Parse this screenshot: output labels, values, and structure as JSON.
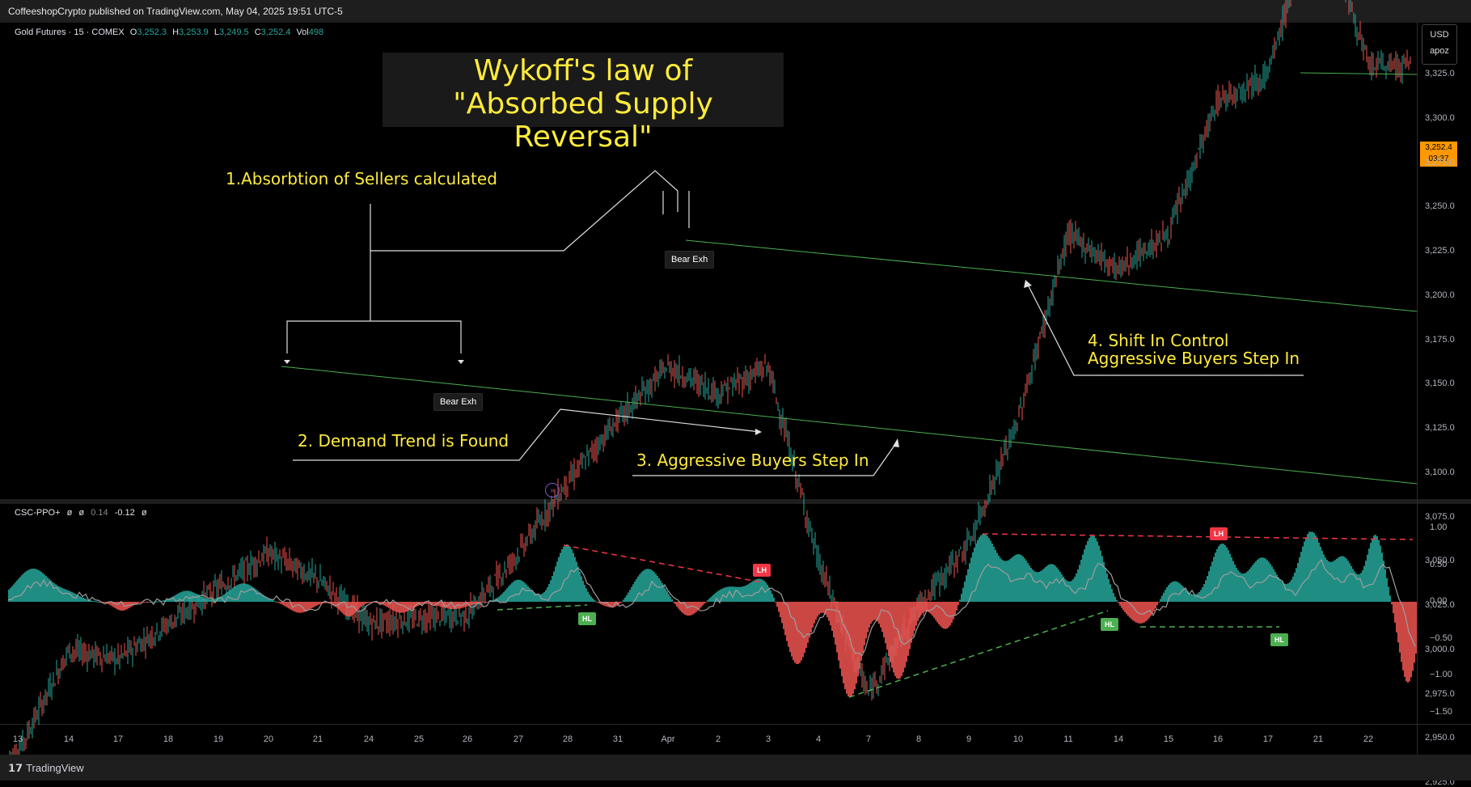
{
  "header": {
    "published_line": "CoffeeshopCrypto published on TradingView.com, May 04, 2025 19:51 UTC-5"
  },
  "legend": {
    "symbol": "Gold Futures · 15 · COMEX",
    "o_label": "O",
    "o": "3,252.3",
    "h_label": "H",
    "h": "3,253.9",
    "l_label": "L",
    "l": "3,249.5",
    "c_label": "C",
    "c": "3,252.4",
    "vol_label": "Vol",
    "vol": "498"
  },
  "indicator_legend": {
    "name": "CSC-PPO+",
    "v1": "ø",
    "v2": "ø",
    "v3": "0.14",
    "v4": "-0.12",
    "v5": "ø"
  },
  "annotations": {
    "title_line1": "Wykoff's law of",
    "title_line2": "\"Absorbed Supply Reversal\"",
    "note1": "1.Absorbtion of Sellers calculated",
    "note2": "2. Demand Trend is Found",
    "note3": "3. Aggressive Buyers Step In",
    "note4_line1": "4. Shift In Control",
    "note4_line2": "Aggressive Buyers Step In",
    "bear_exh_1": "Bear Exh",
    "bear_exh_2": "Bear Exh"
  },
  "markers": {
    "lh": "LH",
    "hl": "HL"
  },
  "price_scale": {
    "currency": "USD",
    "mode": "apoz",
    "last_price": "3,252.4",
    "countdown": "03:37",
    "ticks": [
      "3,325.0",
      "3,300.0",
      "3,275.0",
      "3,250.0",
      "3,225.0",
      "3,200.0",
      "3,175.0",
      "3,150.0",
      "3,125.0",
      "3,100.0",
      "3,075.0",
      "3,050.0",
      "3,025.0",
      "3,000.0",
      "2,975.0",
      "2,950.0",
      "2,925.0"
    ]
  },
  "osc_scale": {
    "ticks": [
      "1.00",
      "0.50",
      "0.00",
      "−0.50",
      "−1.00",
      "−1.50"
    ]
  },
  "x_axis": {
    "labels": [
      "13",
      "14",
      "17",
      "18",
      "19",
      "20",
      "21",
      "24",
      "25",
      "26",
      "27",
      "28",
      "31",
      "Apr",
      "2",
      "3",
      "4",
      "7",
      "8",
      "9",
      "10",
      "11",
      "14",
      "15",
      "16",
      "17",
      "21",
      "22"
    ]
  },
  "footer": {
    "brand": "TradingView"
  },
  "colors": {
    "up": "#26a69a",
    "down": "#ef5350",
    "annotation": "#ffeb3b",
    "trendline": "#4caf50",
    "osc_pos": "#26a69a",
    "osc_neg": "#ef5350"
  },
  "chart_data": {
    "type": "candlestick",
    "symbol": "Gold Futures 15m COMEX",
    "price_path": [
      {
        "x": "13",
        "y": 2942
      },
      {
        "x": "14",
        "y": 3000
      },
      {
        "x": "17",
        "y": 2995
      },
      {
        "x": "18",
        "y": 3015
      },
      {
        "x": "19",
        "y": 3035
      },
      {
        "x": "20",
        "y": 3055
      },
      {
        "x": "21",
        "y": 3040
      },
      {
        "x": "24",
        "y": 3015
      },
      {
        "x": "25",
        "y": 3018
      },
      {
        "x": "26",
        "y": 3020
      },
      {
        "x": "27",
        "y": 3055
      },
      {
        "x": "28",
        "y": 3095
      },
      {
        "x": "31",
        "y": 3130
      },
      {
        "x": "Apr",
        "y": 3160
      },
      {
        "x": "2",
        "y": 3145
      },
      {
        "x": "3",
        "y": 3160
      },
      {
        "x": "4",
        "y": 3050
      },
      {
        "x": "7",
        "y": 2975
      },
      {
        "x": "8",
        "y": 3025
      },
      {
        "x": "9",
        "y": 3060
      },
      {
        "x": "10",
        "y": 3130
      },
      {
        "x": "11",
        "y": 3235
      },
      {
        "x": "14",
        "y": 3215
      },
      {
        "x": "15",
        "y": 3235
      },
      {
        "x": "16",
        "y": 3310
      },
      {
        "x": "17",
        "y": 3325
      },
      {
        "x": "21",
        "y": 3425
      },
      {
        "x": "22",
        "y": 3330
      }
    ],
    "oscillator": {
      "name": "CSC-PPO+",
      "ylim": [
        -1.6,
        1.1
      ]
    }
  }
}
